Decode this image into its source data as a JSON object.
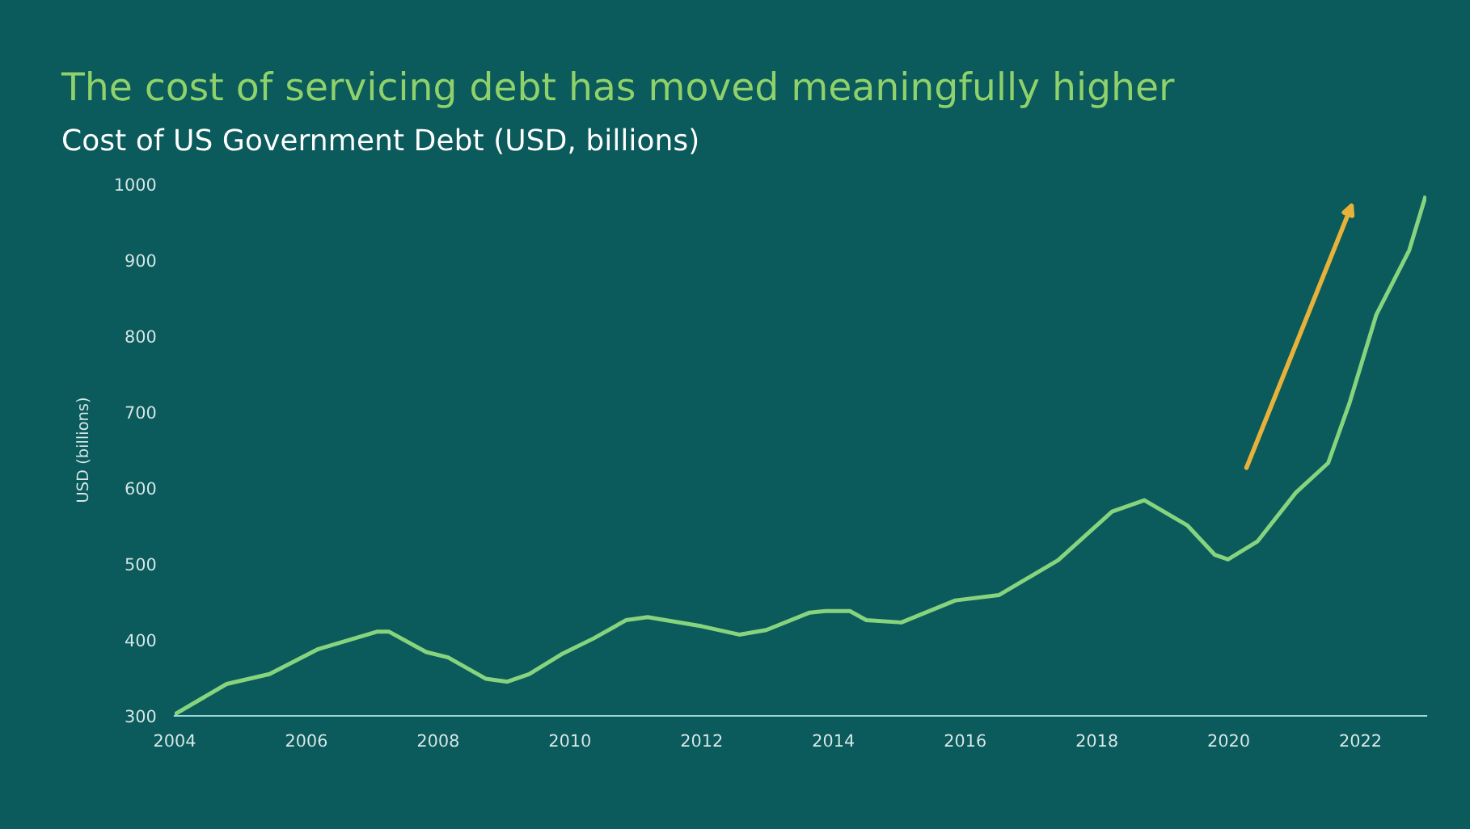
{
  "chart_data": {
    "type": "line",
    "title": "The cost of servicing debt has moved meaningfully higher",
    "subtitle": "Cost of US Government Debt (USD, billions)",
    "ylabel": "USD (billions)",
    "x": [
      2004.0,
      2004.79,
      2005.44,
      2006.18,
      2007.08,
      2007.25,
      2007.82,
      2008.15,
      2008.72,
      2009.05,
      2009.38,
      2009.87,
      2010.36,
      2010.85,
      2011.18,
      2012.0,
      2012.57,
      2012.98,
      2013.64,
      2013.88,
      2014.25,
      2014.5,
      2015.03,
      2015.85,
      2016.51,
      2017.41,
      2018.23,
      2018.72,
      2019.37,
      2019.79,
      2019.99,
      2020.44,
      2021.02,
      2021.51,
      2021.83,
      2022.24,
      2022.74,
      2022.98
    ],
    "series": [
      {
        "color": "#86d47e",
        "values": [
          302,
          342,
          355,
          388,
          411,
          411,
          384,
          377,
          349,
          345,
          355,
          381,
          402,
          426,
          430,
          418,
          407,
          413,
          436,
          438,
          438,
          426,
          423,
          452,
          459,
          505,
          569,
          584,
          551,
          512,
          506,
          530,
          594,
          633,
          711,
          828,
          913,
          982
        ]
      }
    ],
    "xlim": [
      2004,
      2023
    ],
    "xticks": [
      2004,
      2006,
      2008,
      2010,
      2012,
      2014,
      2016,
      2018,
      2020,
      2022
    ],
    "ylim": [
      300,
      1000
    ],
    "yticks": [
      300,
      400,
      500,
      600,
      700,
      800,
      900,
      1000
    ],
    "grid": false,
    "legend": false
  }
}
